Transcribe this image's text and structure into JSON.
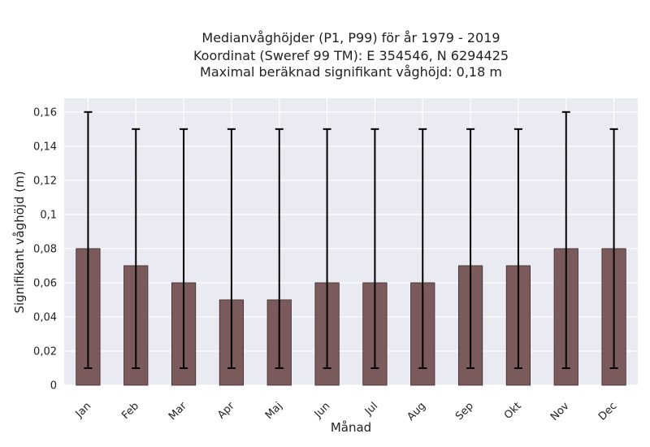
{
  "chart_data": {
    "type": "bar",
    "title_lines": [
      "Medianvåghöjder (P1, P99) för år 1979 - 2019",
      "Koordinat (Sweref 99 TM): E 354546, N 6294425",
      "Maximal beräknad signifikant våghöjd: 0,18 m"
    ],
    "xlabel": "Månad",
    "ylabel": "Signifikant våghöjd (m)",
    "categories": [
      "Jan",
      "Feb",
      "Mar",
      "Apr",
      "Maj",
      "Jun",
      "Jul",
      "Aug",
      "Sep",
      "Okt",
      "Nov",
      "Dec"
    ],
    "values": [
      0.08,
      0.07,
      0.06,
      0.05,
      0.05,
      0.06,
      0.06,
      0.06,
      0.07,
      0.07,
      0.08,
      0.08
    ],
    "error_low": [
      0.01,
      0.01,
      0.01,
      0.01,
      0.01,
      0.01,
      0.01,
      0.01,
      0.01,
      0.01,
      0.01,
      0.01
    ],
    "error_high": [
      0.16,
      0.15,
      0.15,
      0.15,
      0.15,
      0.15,
      0.15,
      0.15,
      0.15,
      0.15,
      0.16,
      0.15
    ],
    "ylim": [
      0,
      0.168
    ],
    "yticks": [
      0,
      0.02,
      0.04,
      0.06,
      0.08,
      0.1,
      0.12,
      0.14,
      0.16
    ],
    "ytick_labels": [
      "0",
      "0,02",
      "0,04",
      "0,06",
      "0,08",
      "0,1",
      "0,12",
      "0,14",
      "0,16"
    ],
    "grid": true,
    "colors": {
      "bar": "#7a5a5a",
      "bar_edge": "#3d2b2b",
      "plot_background": "#eaeaf2",
      "grid": "#ffffff",
      "error_bar": "#000000"
    }
  }
}
